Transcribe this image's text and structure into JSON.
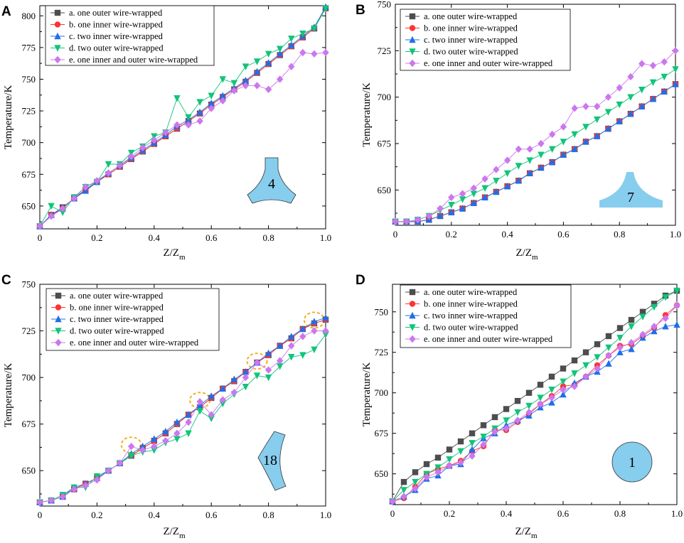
{
  "figure": {
    "series_labels": [
      "a. one outer wire-wrapped",
      "b. one inner wire-wrapped",
      "c. two inner wire-wrapped",
      "d. two outer wire-wrapped",
      "e. one inner and outer wire-wrapped"
    ],
    "series_colors": [
      "#4d4d4d",
      "#ff3333",
      "#1f6fe8",
      "#11c47a",
      "#cc77ee"
    ],
    "series_markers": [
      "square",
      "circle",
      "triangle-up",
      "triangle-down",
      "diamond"
    ],
    "ylabel": "Temperature/K",
    "xlabel_main": "Z/Z",
    "xlabel_sub": "m"
  },
  "chart_data": [
    {
      "panel": "A",
      "type": "line",
      "xlim": [
        0,
        1.0
      ],
      "ylim": [
        632,
        808
      ],
      "xticks": [
        "0",
        "0.2",
        "0.4",
        "0.6",
        "0.8",
        "1.0"
      ],
      "yticks": [
        "650",
        "675",
        "700",
        "725",
        "750",
        "775",
        "800"
      ],
      "shape_number": "4",
      "x": [
        0,
        0.04,
        0.08,
        0.12,
        0.16,
        0.2,
        0.24,
        0.28,
        0.32,
        0.36,
        0.4,
        0.44,
        0.48,
        0.52,
        0.56,
        0.6,
        0.64,
        0.68,
        0.72,
        0.76,
        0.8,
        0.84,
        0.88,
        0.92,
        0.96,
        1.0
      ],
      "series": [
        {
          "name": "a. one outer wire-wrapped",
          "values": [
            634,
            643,
            649,
            656,
            663,
            669,
            675,
            681,
            687,
            693,
            699,
            705,
            711,
            717,
            723,
            730,
            736,
            742,
            748,
            755,
            762,
            769,
            776,
            783,
            790,
            806
          ]
        },
        {
          "name": "b. one inner wire-wrapped",
          "values": [
            634,
            643,
            648,
            656,
            662,
            669,
            675,
            681,
            687,
            693,
            699,
            705,
            711,
            717,
            723,
            730,
            736,
            742,
            748,
            755,
            762,
            769,
            776,
            783,
            790,
            806
          ]
        },
        {
          "name": "c. two inner wire-wrapped",
          "values": [
            634,
            643,
            648,
            656,
            662,
            669,
            676,
            682,
            688,
            694,
            700,
            706,
            713,
            718,
            724,
            731,
            737,
            743,
            749,
            756,
            763,
            770,
            777,
            784,
            791,
            807
          ]
        },
        {
          "name": "d. two outer wire-wrapped",
          "values": [
            634,
            650,
            645,
            657,
            665,
            669,
            683,
            683,
            692,
            697,
            705,
            708,
            735,
            720,
            732,
            737,
            750,
            747,
            760,
            764,
            770,
            774,
            782,
            786,
            790,
            806
          ]
        },
        {
          "name": "e. one inner and outer wire-wrapped",
          "values": [
            634,
            642,
            648,
            656,
            665,
            670,
            676,
            682,
            689,
            696,
            702,
            708,
            714,
            714,
            717,
            727,
            733,
            741,
            745,
            745,
            742,
            750,
            760,
            771,
            770,
            771
          ]
        }
      ]
    },
    {
      "panel": "B",
      "type": "line",
      "xlim": [
        0,
        1.0
      ],
      "ylim": [
        631,
        750
      ],
      "xticks": [
        "0",
        "0.2",
        "0.4",
        "0.6",
        "0.8",
        "1.0"
      ],
      "yticks": [
        "650",
        "675",
        "700",
        "725",
        "750"
      ],
      "shape_number": "7",
      "x": [
        0,
        0.04,
        0.08,
        0.12,
        0.16,
        0.2,
        0.24,
        0.28,
        0.32,
        0.36,
        0.4,
        0.44,
        0.48,
        0.52,
        0.56,
        0.6,
        0.64,
        0.68,
        0.72,
        0.76,
        0.8,
        0.84,
        0.88,
        0.92,
        0.96,
        1.0
      ],
      "series": [
        {
          "name": "a. one outer wire-wrapped",
          "values": [
            633,
            633,
            633,
            634,
            636,
            638,
            640,
            643,
            646,
            649,
            652,
            655,
            659,
            662,
            665,
            669,
            672,
            676,
            679,
            683,
            687,
            691,
            695,
            699,
            703,
            707
          ]
        },
        {
          "name": "b. one inner wire-wrapped",
          "values": [
            633,
            633,
            633,
            634,
            636,
            638,
            640,
            643,
            646,
            649,
            652,
            655,
            659,
            662,
            665,
            669,
            672,
            676,
            679,
            683,
            687,
            691,
            695,
            699,
            703,
            707
          ]
        },
        {
          "name": "c. two inner wire-wrapped",
          "values": [
            633,
            633,
            633,
            634,
            636,
            638,
            640,
            643,
            646,
            649,
            652,
            655,
            659,
            662,
            665,
            669,
            672,
            676,
            679,
            683,
            687,
            691,
            695,
            699,
            703,
            707
          ]
        },
        {
          "name": "d. two outer wire-wrapped",
          "values": [
            633,
            633,
            634,
            636,
            639,
            642,
            645,
            648,
            651,
            655,
            659,
            663,
            666,
            669,
            672,
            676,
            680,
            684,
            688,
            692,
            696,
            700,
            704,
            708,
            711,
            715
          ]
        },
        {
          "name": "e. one inner and outer wire-wrapped",
          "values": [
            633,
            633,
            634,
            636,
            640,
            646,
            648,
            651,
            656,
            661,
            666,
            672,
            672,
            675,
            680,
            684,
            694,
            695,
            695,
            700,
            705,
            711,
            718,
            717,
            719,
            725
          ]
        }
      ]
    },
    {
      "panel": "C",
      "type": "line",
      "xlim": [
        0,
        1.0
      ],
      "ylim": [
        631,
        750
      ],
      "xticks": [
        "0",
        "0.2",
        "0.4",
        "0.6",
        "0.8",
        "1.0"
      ],
      "yticks": [
        "650",
        "675",
        "700",
        "725",
        "750"
      ],
      "shape_number": "18",
      "highlight_x": [
        0.32,
        0.56,
        0.76,
        0.98
      ],
      "x": [
        0,
        0.04,
        0.08,
        0.12,
        0.16,
        0.2,
        0.24,
        0.28,
        0.32,
        0.36,
        0.4,
        0.44,
        0.48,
        0.52,
        0.56,
        0.6,
        0.64,
        0.68,
        0.72,
        0.76,
        0.8,
        0.84,
        0.88,
        0.92,
        0.96,
        1.0
      ],
      "series": [
        {
          "name": "a. one outer wire-wrapped",
          "values": [
            633,
            634,
            636,
            640,
            643,
            646,
            650,
            654,
            658,
            662,
            666,
            670,
            675,
            680,
            684,
            689,
            694,
            698,
            703,
            708,
            712,
            717,
            721,
            726,
            729,
            731
          ]
        },
        {
          "name": "b. one inner wire-wrapped",
          "values": [
            633,
            634,
            636,
            640,
            643,
            646,
            650,
            654,
            658,
            662,
            666,
            670,
            675,
            680,
            684,
            689,
            694,
            698,
            703,
            708,
            712,
            717,
            721,
            726,
            729,
            731
          ]
        },
        {
          "name": "c. two inner wire-wrapped",
          "values": [
            633,
            634,
            636,
            641,
            643,
            646,
            650,
            654,
            659,
            663,
            667,
            671,
            676,
            680,
            685,
            690,
            694,
            699,
            703,
            708,
            713,
            717,
            722,
            726,
            730,
            732
          ]
        },
        {
          "name": "d. two outer wire-wrapped",
          "values": [
            633,
            634,
            637,
            641,
            641,
            647,
            650,
            654,
            658,
            660,
            661,
            665,
            667,
            670,
            682,
            678,
            686,
            691,
            695,
            701,
            700,
            706,
            711,
            712,
            715,
            723
          ]
        },
        {
          "name": "e. one inner and outer wire-wrapped",
          "values": [
            633,
            634,
            636,
            640,
            642,
            645,
            650,
            654,
            663,
            661,
            663,
            666,
            670,
            676,
            687,
            680,
            688,
            692,
            700,
            708,
            704,
            709,
            717,
            722,
            725,
            725
          ]
        }
      ]
    },
    {
      "panel": "D",
      "type": "line",
      "xlim": [
        0,
        1.0
      ],
      "ylim": [
        631,
        767
      ],
      "xticks": [
        "0",
        "0.2",
        "0.4",
        "0.6",
        "0.8",
        "1.0"
      ],
      "yticks": [
        "650",
        "675",
        "700",
        "725",
        "750"
      ],
      "shape_number": "1",
      "x": [
        0,
        0.04,
        0.08,
        0.12,
        0.16,
        0.2,
        0.24,
        0.28,
        0.32,
        0.36,
        0.4,
        0.44,
        0.48,
        0.52,
        0.56,
        0.6,
        0.64,
        0.68,
        0.72,
        0.76,
        0.8,
        0.84,
        0.88,
        0.92,
        0.96,
        1.0
      ],
      "series": [
        {
          "name": "a. one outer wire-wrapped",
          "values": [
            633,
            645,
            651,
            656,
            660,
            665,
            670,
            675,
            680,
            685,
            690,
            695,
            700,
            705,
            710,
            715,
            720,
            725,
            730,
            735,
            740,
            745,
            750,
            755,
            760,
            763
          ]
        },
        {
          "name": "b. one inner wire-wrapped",
          "values": [
            633,
            635,
            642,
            650,
            653,
            655,
            658,
            664,
            667,
            677,
            677,
            682,
            687,
            693,
            698,
            704,
            705,
            710,
            717,
            723,
            729,
            730,
            735,
            740,
            748,
            754
          ]
        },
        {
          "name": "c. two inner wire-wrapped",
          "values": [
            633,
            636,
            640,
            647,
            649,
            655,
            656,
            665,
            672,
            675,
            680,
            683,
            686,
            691,
            694,
            699,
            706,
            710,
            713,
            718,
            725,
            727,
            734,
            738,
            741,
            742
          ]
        },
        {
          "name": "d. two outer wire-wrapped",
          "values": [
            633,
            640,
            645,
            650,
            654,
            659,
            664,
            669,
            673,
            678,
            683,
            688,
            692,
            697,
            702,
            707,
            712,
            717,
            722,
            728,
            734,
            741,
            747,
            753,
            759,
            763
          ]
        },
        {
          "name": "e. one inner and outer wire-wrapped",
          "values": [
            633,
            636,
            641,
            648,
            651,
            655,
            657,
            661,
            668,
            676,
            678,
            683,
            688,
            693,
            697,
            702,
            704,
            710,
            715,
            723,
            728,
            731,
            736,
            741,
            746,
            754
          ]
        }
      ]
    }
  ]
}
